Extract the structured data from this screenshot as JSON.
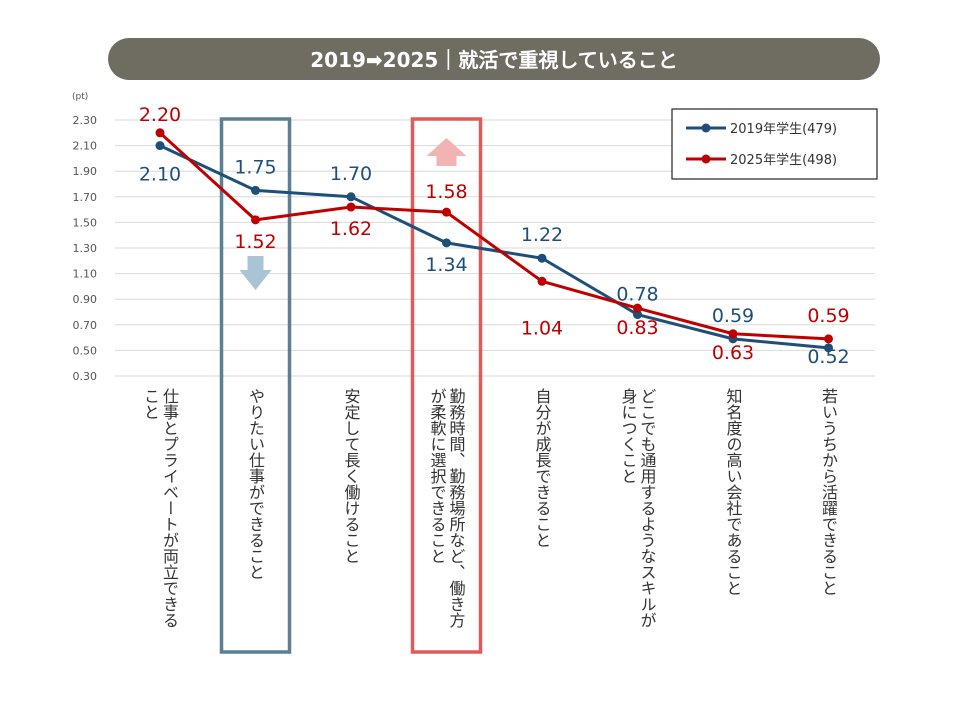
{
  "chart_data": {
    "type": "line",
    "title": "2019➡2025｜就活で重視していること",
    "unit": "(pt)",
    "ylim": [
      0.3,
      2.3
    ],
    "yticks": [
      "0.30",
      "0.50",
      "0.70",
      "0.90",
      "1.10",
      "1.30",
      "1.50",
      "1.70",
      "1.90",
      "2.10",
      "2.30"
    ],
    "categories": [
      [
        "仕事とプライベートが両立できる",
        "こと"
      ],
      [
        "やりたい仕事ができること"
      ],
      [
        "安定して長く働けること"
      ],
      [
        "勤務時間、勤務場所など、働き方",
        "が柔軟に選択できること"
      ],
      [
        "自分が成長できること"
      ],
      [
        "どこでも通用するようなスキルが",
        "身につくこと"
      ],
      [
        "知名度の高い会社であること"
      ],
      [
        "若いうちから活躍できること"
      ]
    ],
    "series": [
      {
        "name": "2019年学生(479)",
        "color": "#1f4e79",
        "values": [
          2.1,
          1.75,
          1.7,
          1.34,
          1.22,
          0.78,
          0.59,
          0.52
        ],
        "labels": [
          "2.10",
          "1.75",
          "1.70",
          "1.34",
          "1.22",
          "0.78",
          "0.59",
          "0.52"
        ]
      },
      {
        "name": "2025年学生(498)",
        "color": "#c00000",
        "values": [
          2.2,
          1.52,
          1.62,
          1.58,
          1.04,
          0.83,
          0.63,
          0.59
        ],
        "labels": [
          "2.20",
          "1.52",
          "1.62",
          "1.58",
          "1.04",
          "0.83",
          "0.63",
          "0.59"
        ]
      }
    ],
    "highlights": [
      {
        "category_index": 1,
        "color": "#5b7f94",
        "arrow": "down",
        "arrow_color": "#a9c4d4"
      },
      {
        "category_index": 3,
        "color": "#e05a5a",
        "arrow": "up",
        "arrow_color": "#f2b3b3"
      }
    ],
    "legend_position": "top-right",
    "grid": true
  }
}
